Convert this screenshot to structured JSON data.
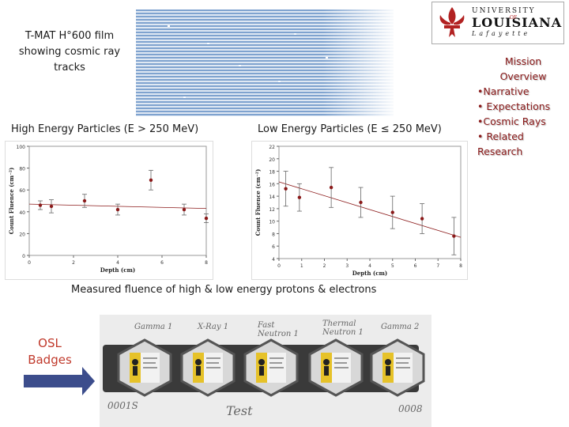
{
  "film_caption": [
    "T-MAT H°600 film",
    "showing cosmic ray",
    "tracks"
  ],
  "logo": {
    "line1": "UNIVERSITY",
    "line2": "LOUISIANA",
    "of": "OF",
    "line3": "Lafayette"
  },
  "mission": {
    "items": [
      "Mission",
      "Overview",
      "•Narrative",
      "• Expectations",
      "•Cosmic Rays",
      "• Related",
      "Research"
    ]
  },
  "charts": {
    "high": {
      "label": "High Energy Particles (E > 250 MeV)"
    },
    "low": {
      "label": "Low Energy Particles (E ≤ 250 MeV)"
    }
  },
  "measured_caption": "Measured fluence of high & low energy protons & electrons",
  "osl_label": [
    "OSL",
    "Badges"
  ],
  "photo_labels": [
    "Gamma 1",
    "X-Ray 1",
    "Fast Neutron 1",
    "Thermal Neutron 1",
    "Gamma 2",
    "0001S",
    "Test",
    "0008"
  ],
  "colors": {
    "accent": "#8b1a1a",
    "osl": "#c0392b",
    "arrow": "#3c4d8c",
    "data": "#8b1a1a"
  },
  "chart_data": [
    {
      "type": "scatter",
      "title": "High Energy Particles (E > 250 MeV)",
      "xlabel": "Depth (cm)",
      "ylabel": "Count Fluence (cm⁻²)",
      "xlim": [
        0,
        8
      ],
      "ylim": [
        0,
        100
      ],
      "xticks": [
        "0",
        "2",
        "4",
        "6",
        "8"
      ],
      "yticks": [
        "0",
        "20",
        "40",
        "60",
        "80",
        "100"
      ],
      "x": [
        0.5,
        1.0,
        2.5,
        4.0,
        5.5,
        7.0,
        8.0
      ],
      "y": [
        46,
        45,
        50,
        42,
        69,
        42,
        34
      ],
      "yerr": [
        4,
        6,
        6,
        5,
        9,
        5,
        4
      ],
      "trend": [
        [
          0,
          47
        ],
        [
          8,
          43
        ]
      ],
      "grid": false
    },
    {
      "type": "scatter",
      "title": "Low Energy Particles (E ≤ 250 MeV)",
      "xlabel": "Depth (cm)",
      "ylabel": "Count Fluence (cm⁻²)",
      "xlim": [
        0,
        8
      ],
      "ylim": [
        4,
        22
      ],
      "xticks": [
        "0",
        "1",
        "2",
        "3",
        "4",
        "5",
        "6",
        "7",
        "8"
      ],
      "yticks": [
        "4",
        "6",
        "8",
        "10",
        "12",
        "14",
        "16",
        "18",
        "20",
        "22"
      ],
      "x": [
        0.3,
        0.9,
        2.3,
        3.6,
        5.0,
        6.3,
        7.7
      ],
      "y": [
        15.2,
        13.8,
        15.4,
        13.0,
        11.4,
        10.4,
        7.6
      ],
      "yerr": [
        2.8,
        2.2,
        3.2,
        2.4,
        2.6,
        2.4,
        3.0
      ],
      "trend": [
        [
          0,
          16.3
        ],
        [
          8,
          7.4
        ]
      ],
      "grid": false
    }
  ]
}
